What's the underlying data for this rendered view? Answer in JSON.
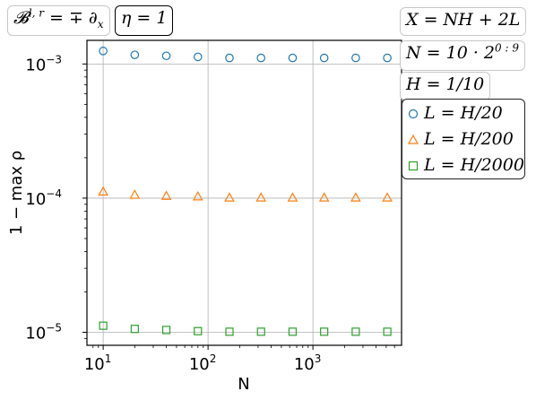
{
  "boxes": {
    "operator": {
      "main": "𝓑",
      "sup": "l, r",
      "rest": " = ∓ ∂",
      "sub": "x"
    },
    "eta": "η = 1",
    "domain": "X = NH + 2L",
    "n_range": {
      "main": "N = 10 · 2",
      "sup": "0 : 9"
    },
    "h_value": "H = 1/10"
  },
  "chart_data": {
    "type": "scatter",
    "title": "",
    "xlabel": "N",
    "ylabel": "1 − max ρ",
    "xscale": "log",
    "yscale": "log",
    "xlim": [
      7,
      7000
    ],
    "ylim": [
      8e-06,
      0.0015
    ],
    "x_ticks": [
      {
        "value": 10,
        "base": "10",
        "exp": "1"
      },
      {
        "value": 100,
        "base": "10",
        "exp": "2"
      },
      {
        "value": 1000,
        "base": "10",
        "exp": "3"
      }
    ],
    "y_ticks": [
      {
        "value": 0.001,
        "base": "10",
        "exp": "−3"
      },
      {
        "value": 0.0001,
        "base": "10",
        "exp": "−4"
      },
      {
        "value": 1e-05,
        "base": "10",
        "exp": "−5"
      }
    ],
    "grid": true,
    "legend_position": "right",
    "x": [
      10,
      20,
      40,
      80,
      160,
      320,
      640,
      1280,
      2560,
      5120
    ],
    "series": [
      {
        "name": "L = H/20",
        "marker": "circle",
        "color": "#1f77b4",
        "values": [
          0.00125,
          0.00117,
          0.00115,
          0.00113,
          0.00111,
          0.00111,
          0.00111,
          0.00111,
          0.00111,
          0.00111
        ]
      },
      {
        "name": "L = H/200",
        "marker": "triangle",
        "color": "#ff7f0e",
        "values": [
          0.000112,
          0.000106,
          0.000104,
          0.000103,
          0.000101,
          0.000101,
          0.000101,
          0.000101,
          0.000101,
          0.000101
        ]
      },
      {
        "name": "L = H/2000",
        "marker": "square",
        "color": "#2ca02c",
        "values": [
          1.12e-05,
          1.06e-05,
          1.04e-05,
          1.02e-05,
          1.01e-05,
          1.01e-05,
          1.01e-05,
          1.01e-05,
          1.01e-05,
          1.01e-05
        ]
      }
    ]
  }
}
